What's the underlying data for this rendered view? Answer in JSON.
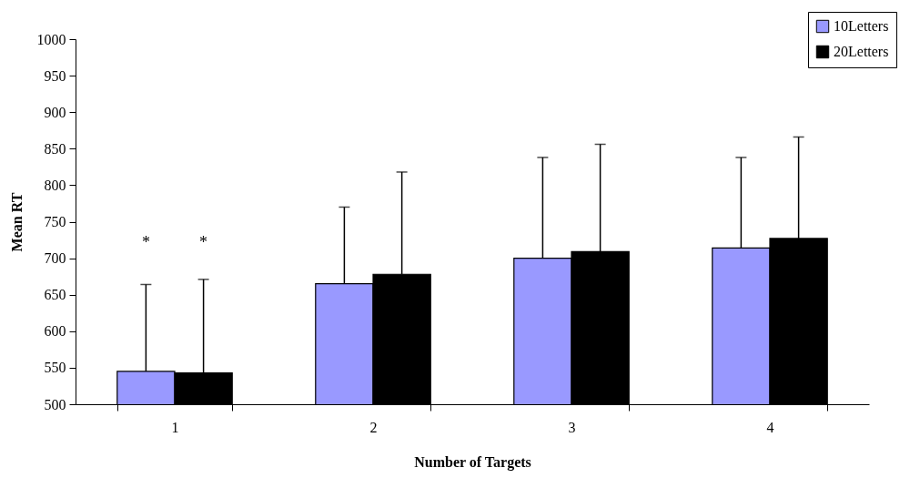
{
  "chart_data": {
    "type": "bar",
    "xlabel": "Number of Targets",
    "ylabel": "Mean RT",
    "categories": [
      "1",
      "2",
      "3",
      "4"
    ],
    "series": [
      {
        "name": "10Letters",
        "color": "#9999ff",
        "values": [
          545,
          665,
          700,
          714
        ],
        "errors": [
          [
            545,
            664
          ],
          [
            665,
            770
          ],
          [
            700,
            838
          ],
          [
            714,
            838
          ]
        ]
      },
      {
        "name": "20Letters",
        "color": "#000000",
        "values": [
          543,
          678,
          709,
          727
        ],
        "errors": [
          [
            543,
            671
          ],
          [
            678,
            818
          ],
          [
            709,
            856
          ],
          [
            727,
            866
          ]
        ]
      }
    ],
    "ylim": [
      500,
      1000
    ],
    "yticks": [
      500,
      550,
      600,
      650,
      700,
      750,
      800,
      850,
      900,
      950,
      1000
    ],
    "annotations": [
      "*",
      "*"
    ],
    "legend": "top right",
    "grid": false
  }
}
